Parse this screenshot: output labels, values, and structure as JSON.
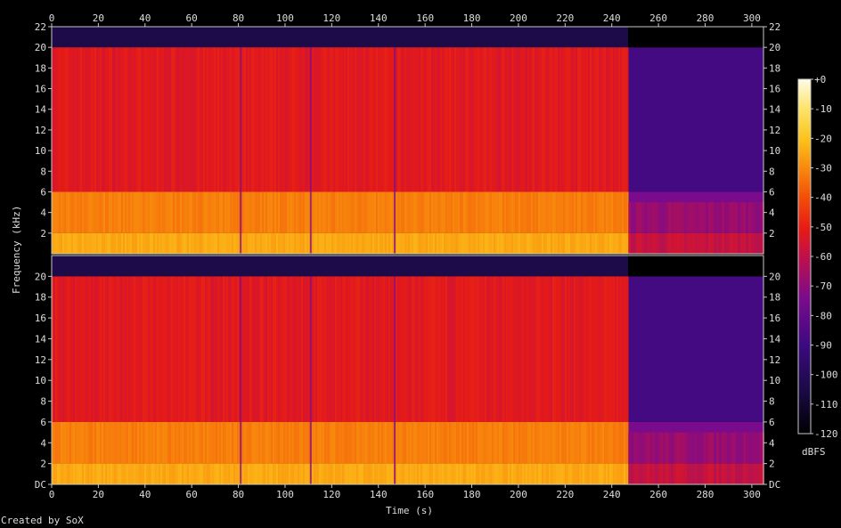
{
  "footer": "Created by SoX",
  "chart_data": {
    "type": "heatmap",
    "subtype": "spectrogram",
    "channels": 2,
    "xlabel": "Time (s)",
    "ylabel": "Frequency (kHz)",
    "colorbar_label": "dBFS",
    "xlim": [
      0,
      305
    ],
    "ylim": [
      0,
      22
    ],
    "x_ticks": [
      "0",
      "20",
      "40",
      "60",
      "80",
      "100",
      "120",
      "140",
      "160",
      "180",
      "200",
      "220",
      "240",
      "260",
      "280",
      "300"
    ],
    "y_ticks_top": [
      "2",
      "4",
      "6",
      "8",
      "10",
      "12",
      "14",
      "16",
      "18",
      "20",
      "22"
    ],
    "y_ticks_bottom": [
      "DC",
      "2",
      "4",
      "6",
      "8",
      "10",
      "12",
      "14",
      "16",
      "18",
      "20"
    ],
    "colorbar_ticks": [
      "+0",
      "-10",
      "-20",
      "-30",
      "-40",
      "-50",
      "-60",
      "-70",
      "-80",
      "-90",
      "-100",
      "-110",
      "-120"
    ],
    "colorbar_range_dbfs": [
      -120,
      0
    ],
    "music_end_s": 247,
    "lowpass_cutoff_khz": 20,
    "band_levels_dbfs": [
      {
        "from_khz": 0,
        "to_khz": 2,
        "music": -25,
        "tail": -55
      },
      {
        "from_khz": 2,
        "to_khz": 6,
        "music": -32,
        "tail": -75
      },
      {
        "from_khz": 6,
        "to_khz": 20,
        "music": -52,
        "tail": -88
      },
      {
        "from_khz": 20,
        "to_khz": 22,
        "music": -105,
        "tail": -120
      }
    ],
    "dropout_times_s": [
      81,
      111,
      147
    ]
  },
  "colors": {
    "background": "#000000",
    "axis": "#c8c8c8",
    "text": "#dddddd"
  }
}
